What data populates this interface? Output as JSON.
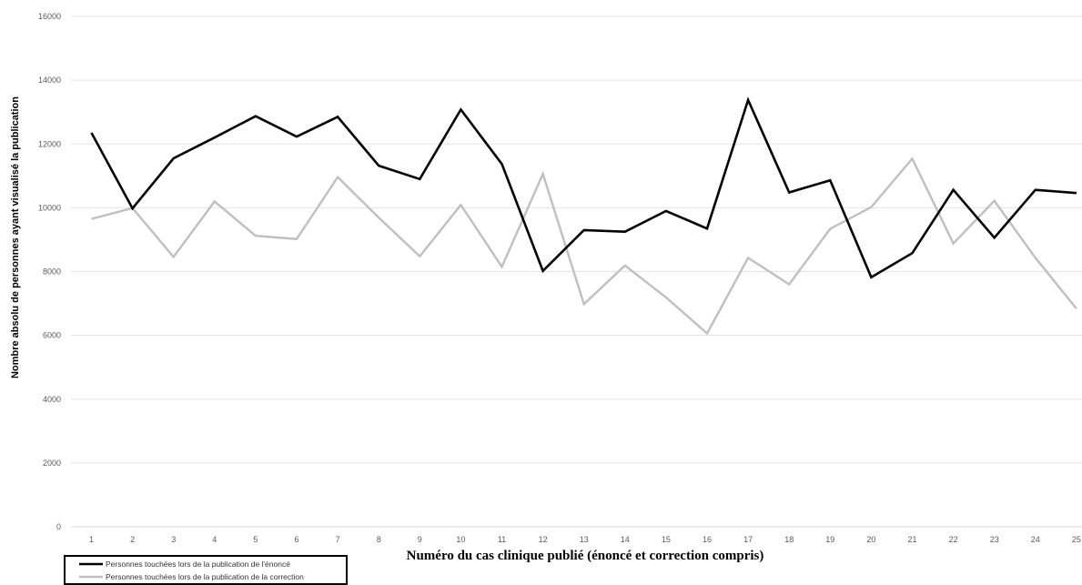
{
  "chart_data": {
    "type": "line",
    "title": "",
    "xlabel": "Numéro du cas clinique publié (énoncé et correction compris)",
    "ylabel": "Nombre absolu de personnes ayant visualisé la publication",
    "x": [
      1,
      2,
      3,
      4,
      5,
      6,
      7,
      8,
      9,
      10,
      11,
      12,
      13,
      14,
      15,
      16,
      17,
      18,
      19,
      20,
      21,
      22,
      23,
      24,
      25
    ],
    "ylim": [
      0,
      16000
    ],
    "yticks": [
      0,
      2000,
      4000,
      6000,
      8000,
      10000,
      12000,
      14000,
      16000
    ],
    "ytick_labels": [
      "0",
      "2000",
      "4000",
      "6000",
      "8000",
      "10000",
      "12000",
      "14000",
      "16000"
    ],
    "xtick_labels": [
      "1",
      "2",
      "3",
      "4",
      "5",
      "6",
      "7",
      "8",
      "9",
      "10",
      "11",
      "12",
      "13",
      "14",
      "15",
      "16",
      "17",
      "18",
      "19",
      "20",
      "21",
      "22",
      "23",
      "24",
      "25"
    ],
    "grid": "horizontal",
    "legend_position": "bottom-left",
    "series": [
      {
        "name": "Personnes touchées lors de la publication de l'énoncé",
        "color": "#000000",
        "values": [
          12350,
          9980,
          11550,
          12200,
          12870,
          12230,
          12850,
          11320,
          10900,
          13080,
          11370,
          8020,
          9300,
          9250,
          9900,
          9350,
          13380,
          10480,
          10860,
          7820,
          8580,
          10560,
          9060,
          10560,
          10460
        ]
      },
      {
        "name": "Personnes touchées lors de la publication de la correction",
        "color": "#bfbfbf",
        "values": [
          9650,
          9990,
          8460,
          10200,
          9120,
          9020,
          10960,
          9690,
          8480,
          10090,
          8150,
          11060,
          6980,
          8190,
          7190,
          6060,
          8430,
          7600,
          9340,
          10020,
          11540,
          8880,
          10220,
          8430,
          6840
        ]
      }
    ]
  }
}
